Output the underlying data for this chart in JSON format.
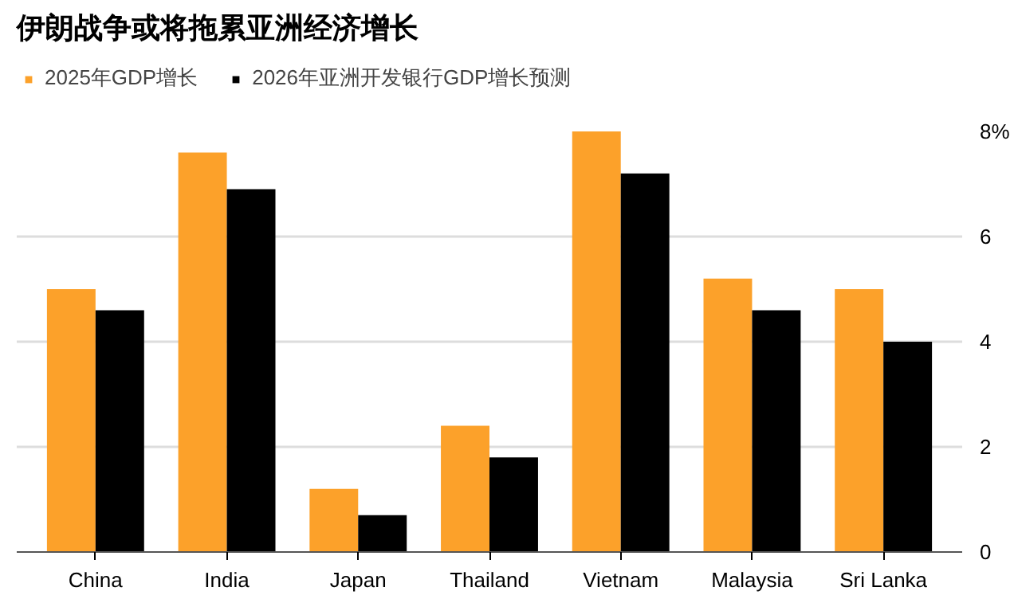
{
  "chart_data": {
    "type": "bar",
    "title": "伊朗战争或将拖累亚洲经济增长",
    "categories": [
      "China",
      "India",
      "Japan",
      "Thailand",
      "Vietnam",
      "Malaysia",
      "Sri Lanka"
    ],
    "series": [
      {
        "name": "2025年GDP增长",
        "color": "#fca12a",
        "values": [
          5.0,
          7.6,
          1.2,
          2.4,
          8.0,
          5.2,
          5.0
        ]
      },
      {
        "name": "2026年亚洲开发银行GDP增长预测",
        "color": "#000000",
        "values": [
          4.6,
          6.9,
          0.7,
          1.8,
          7.2,
          4.6,
          4.0
        ]
      }
    ],
    "ylim": [
      0,
      8
    ],
    "yticks": [
      0,
      2,
      4,
      6,
      {
        "value": 8,
        "label": "8%"
      }
    ],
    "grid": "y",
    "legend": "top left"
  }
}
